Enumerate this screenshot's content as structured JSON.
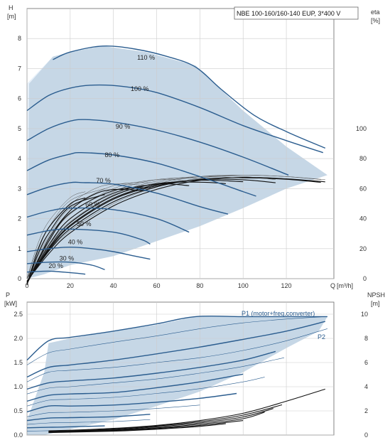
{
  "model_label": "NBE 100-160/160-140 EUP, 3*400 V",
  "chart_data": [
    {
      "type": "line",
      "ylabel_left": "H",
      "yunit_left": "[m]",
      "ylabel_right": "eta",
      "yunit_right": "[%]",
      "xlabel": "Q",
      "xunit": "[m³/h]",
      "xlim": [
        0,
        142
      ],
      "ylim_left": [
        0,
        9
      ],
      "ylim_right": [
        0,
        180
      ],
      "xticks": [
        0,
        20,
        40,
        60,
        80,
        100,
        120
      ],
      "yticks_left": [
        0,
        1,
        2,
        3,
        4,
        5,
        6,
        7,
        8
      ],
      "yticks_right": [
        0,
        20,
        40,
        60,
        80,
        100
      ],
      "grid": true,
      "operating_area": [
        [
          0,
          0
        ],
        [
          1,
          6.5
        ],
        [
          12,
          7.4
        ],
        [
          20,
          7.55
        ],
        [
          35,
          7.75
        ],
        [
          55,
          7.55
        ],
        [
          78,
          7.1
        ],
        [
          100,
          5.6
        ],
        [
          120,
          4.4
        ],
        [
          139,
          3.45
        ],
        [
          120,
          3.0
        ],
        [
          100,
          2.35
        ],
        [
          80,
          1.75
        ],
        [
          60,
          1.25
        ],
        [
          40,
          0.75
        ],
        [
          20,
          0.45
        ],
        [
          8,
          0.15
        ],
        [
          0,
          0
        ]
      ],
      "series": [
        {
          "name": "110 %",
          "label_at": [
            51,
            7.3
          ],
          "x": [
            12,
            20,
            35,
            50,
            65,
            78,
            90,
            105,
            120,
            138
          ],
          "values": [
            7.3,
            7.55,
            7.75,
            7.65,
            7.4,
            7.05,
            6.3,
            5.45,
            4.9,
            4.35
          ]
        },
        {
          "name": "100 %",
          "label_at": [
            48,
            6.25
          ],
          "x": [
            0,
            10,
            20,
            31,
            45,
            60,
            80,
            100,
            120,
            137
          ],
          "values": [
            5.6,
            6.1,
            6.35,
            6.45,
            6.4,
            6.2,
            5.7,
            5.1,
            4.6,
            4.2
          ]
        },
        {
          "name": "90 %",
          "label_at": [
            41,
            5.0
          ],
          "x": [
            0,
            10,
            20,
            27,
            40,
            60,
            80,
            100,
            121
          ],
          "values": [
            4.6,
            5.0,
            5.25,
            5.3,
            5.22,
            4.95,
            4.55,
            4.05,
            3.45
          ]
        },
        {
          "name": "80 %",
          "label_at": [
            36,
            4.05
          ],
          "x": [
            0,
            10,
            20,
            25,
            40,
            60,
            80,
            100,
            106
          ],
          "values": [
            3.6,
            3.95,
            4.15,
            4.2,
            4.12,
            3.85,
            3.4,
            2.9,
            2.75
          ]
        },
        {
          "name": "70 %",
          "label_at": [
            32,
            3.2
          ],
          "x": [
            0,
            10,
            20,
            26,
            40,
            60,
            80,
            93
          ],
          "values": [
            2.8,
            3.05,
            3.2,
            3.2,
            3.15,
            2.85,
            2.4,
            2.15
          ]
        },
        {
          "name": "60 %",
          "label_at": [
            27,
            2.4
          ],
          "x": [
            0,
            10,
            20,
            40,
            60,
            75
          ],
          "values": [
            2.05,
            2.25,
            2.35,
            2.3,
            2.0,
            1.55
          ]
        },
        {
          "name": "50 %",
          "label_at": [
            23,
            1.75
          ],
          "x": [
            0,
            10,
            20,
            40,
            53,
            57
          ],
          "values": [
            1.45,
            1.6,
            1.65,
            1.55,
            1.3,
            1.15
          ]
        },
        {
          "name": "40 %",
          "label_at": [
            19,
            1.15
          ],
          "x": [
            0,
            10,
            20,
            30,
            40,
            50,
            57
          ],
          "values": [
            0.9,
            1.0,
            1.05,
            1.0,
            0.9,
            0.75,
            0.65
          ]
        },
        {
          "name": "30 %",
          "label_at": [
            15,
            0.6
          ],
          "x": [
            0,
            10,
            20,
            30,
            36
          ],
          "values": [
            0.5,
            0.55,
            0.55,
            0.45,
            0.3
          ]
        },
        {
          "name": "20 %",
          "label_at": [
            10,
            0.35
          ],
          "x": [
            0,
            10,
            20,
            27
          ],
          "values": [
            0.22,
            0.25,
            0.2,
            0.15
          ]
        }
      ],
      "eta_curves": [
        {
          "x": [
            0,
            10,
            20,
            40,
            60,
            80,
            100,
            120,
            138
          ],
          "values": [
            0,
            18,
            32,
            50,
            61,
            67,
            69,
            68,
            66
          ]
        },
        {
          "x": [
            0,
            10,
            20,
            40,
            60,
            80,
            100,
            120,
            136
          ],
          "values": [
            0,
            20,
            35,
            53,
            63,
            68,
            69,
            68,
            66
          ]
        },
        {
          "x": [
            0,
            10,
            20,
            40,
            60,
            80,
            100,
            115
          ],
          "values": [
            0,
            21,
            37,
            55,
            64,
            68,
            68,
            66
          ]
        },
        {
          "x": [
            0,
            10,
            20,
            40,
            60,
            80,
            100
          ],
          "values": [
            0,
            22,
            38,
            56,
            65,
            68,
            67
          ]
        },
        {
          "x": [
            0,
            10,
            20,
            40,
            60,
            80,
            92
          ],
          "values": [
            0,
            23,
            40,
            58,
            66,
            67,
            66
          ]
        },
        {
          "x": [
            0,
            10,
            20,
            40,
            60,
            75
          ],
          "values": [
            0,
            25,
            43,
            60,
            66,
            65
          ]
        },
        {
          "x": [
            0,
            10,
            20,
            40,
            57
          ],
          "values": [
            0,
            28,
            47,
            62,
            64
          ]
        },
        {
          "x": [
            0,
            10,
            20,
            30,
            40,
            57
          ],
          "values": [
            0,
            30,
            49,
            59,
            63,
            62
          ]
        },
        {
          "x": [
            0,
            5,
            10,
            20,
            36
          ],
          "values": [
            0,
            20,
            34,
            52,
            60
          ]
        },
        {
          "x": [
            0,
            5,
            10,
            20,
            27
          ],
          "values": [
            0,
            23,
            38,
            54,
            58
          ]
        }
      ]
    },
    {
      "type": "line",
      "ylabel_left": "P",
      "yunit_left": "[kW]",
      "ylabel_right": "NPSH",
      "yunit_right": "[m]",
      "xlim": [
        0,
        142
      ],
      "ylim_left": [
        0,
        2.75
      ],
      "ylim_right": [
        0,
        11
      ],
      "yticks_left": [
        0,
        0.5,
        1.0,
        1.5,
        2.0,
        2.5
      ],
      "ytick_labels_left": [
        "0.0",
        "0.5",
        "1.0",
        "1.5",
        "2.0",
        "2.5"
      ],
      "yticks_right": [
        0,
        2,
        4,
        6,
        8,
        10
      ],
      "grid": true,
      "annotations": [
        {
          "text": "P1 (motor+freq.converter)",
          "at": [
            120,
            2.47
          ]
        },
        {
          "text": "P2",
          "at": [
            134,
            2.09
          ]
        }
      ],
      "operating_area": [
        [
          10,
          1.9
        ],
        [
          20,
          2.0
        ],
        [
          40,
          2.15
        ],
        [
          60,
          2.28
        ],
        [
          78,
          2.45
        ],
        [
          100,
          2.45
        ],
        [
          139,
          2.45
        ],
        [
          135,
          2.15
        ],
        [
          120,
          1.8
        ],
        [
          110,
          1.55
        ],
        [
          100,
          1.3
        ],
        [
          80,
          0.9
        ],
        [
          60,
          0.6
        ],
        [
          40,
          0.32
        ],
        [
          20,
          0.12
        ],
        [
          8,
          0.0
        ],
        [
          0,
          0.0
        ],
        [
          0,
          0.3
        ],
        [
          8,
          1.3
        ]
      ],
      "series": [
        {
          "name": "P1 (motor+freq.converter)",
          "x": [
            0,
            10,
            20,
            40,
            60,
            78,
            100,
            120,
            139
          ],
          "values": [
            1.55,
            1.95,
            2.02,
            2.15,
            2.3,
            2.45,
            2.45,
            2.45,
            2.45
          ]
        },
        {
          "name": "P2",
          "x": [
            0,
            10,
            20,
            40,
            60,
            80,
            100,
            120,
            138
          ],
          "values": [
            1.45,
            1.7,
            1.78,
            1.92,
            2.05,
            2.2,
            2.32,
            2.4,
            2.45
          ]
        },
        {
          "x": [
            0,
            10,
            20,
            40,
            60,
            80,
            100,
            120,
            138
          ],
          "values": [
            1.2,
            1.4,
            1.45,
            1.55,
            1.68,
            1.82,
            1.98,
            2.15,
            2.35
          ]
        },
        {
          "x": [
            0,
            10,
            20,
            40,
            60,
            80,
            100,
            120,
            139
          ],
          "values": [
            1.1,
            1.3,
            1.34,
            1.4,
            1.5,
            1.6,
            1.75,
            1.95,
            2.2
          ]
        },
        {
          "x": [
            0,
            10,
            20,
            40,
            60,
            80,
            100,
            115
          ],
          "values": [
            0.95,
            1.08,
            1.12,
            1.18,
            1.28,
            1.4,
            1.55,
            1.73
          ]
        },
        {
          "x": [
            0,
            10,
            20,
            40,
            60,
            80,
            100,
            119
          ],
          "values": [
            0.85,
            0.97,
            1.0,
            1.08,
            1.16,
            1.28,
            1.42,
            1.6
          ]
        },
        {
          "x": [
            0,
            10,
            20,
            40,
            60,
            80,
            100
          ],
          "values": [
            0.7,
            0.82,
            0.85,
            0.88,
            0.98,
            1.1,
            1.26
          ]
        },
        {
          "x": [
            0,
            10,
            20,
            40,
            60,
            80,
            100,
            110
          ],
          "values": [
            0.6,
            0.72,
            0.74,
            0.78,
            0.86,
            0.96,
            1.1,
            1.2
          ]
        },
        {
          "x": [
            0,
            10,
            20,
            40,
            60,
            80,
            97
          ],
          "values": [
            0.48,
            0.6,
            0.6,
            0.62,
            0.68,
            0.76,
            0.86
          ]
        },
        {
          "x": [
            0,
            10,
            20,
            40,
            60,
            80
          ],
          "values": [
            0.38,
            0.46,
            0.47,
            0.5,
            0.55,
            0.62
          ]
        },
        {
          "x": [
            0,
            10,
            20,
            40,
            57
          ],
          "values": [
            0.3,
            0.35,
            0.36,
            0.38,
            0.43
          ]
        },
        {
          "x": [
            0,
            10,
            20,
            40,
            57
          ],
          "values": [
            0.22,
            0.25,
            0.26,
            0.28,
            0.32
          ]
        },
        {
          "x": [
            0,
            10,
            20,
            36
          ],
          "values": [
            0.15,
            0.16,
            0.17,
            0.19
          ]
        },
        {
          "x": [
            0,
            10,
            20,
            27
          ],
          "values": [
            0.08,
            0.09,
            0.1,
            0.11
          ]
        }
      ],
      "npsh_curves": [
        {
          "x": [
            10,
            20,
            40,
            60,
            80,
            100,
            120,
            138
          ],
          "values": [
            0.35,
            0.4,
            0.55,
            0.8,
            1.2,
            1.8,
            2.8,
            3.8
          ]
        },
        {
          "x": [
            10,
            20,
            40,
            60,
            80,
            100,
            118
          ],
          "values": [
            0.3,
            0.35,
            0.5,
            0.75,
            1.1,
            1.65,
            2.5
          ]
        },
        {
          "x": [
            10,
            20,
            40,
            60,
            80,
            100,
            114
          ],
          "values": [
            0.28,
            0.33,
            0.45,
            0.68,
            1.0,
            1.5,
            2.2
          ]
        },
        {
          "x": [
            10,
            20,
            40,
            60,
            80,
            100,
            110
          ],
          "values": [
            0.25,
            0.3,
            0.4,
            0.6,
            0.9,
            1.35,
            1.9
          ]
        },
        {
          "x": [
            10,
            20,
            40,
            60,
            80,
            100
          ],
          "values": [
            0.22,
            0.27,
            0.36,
            0.54,
            0.8,
            1.2
          ]
        },
        {
          "x": [
            10,
            20,
            40,
            60,
            80,
            92
          ],
          "values": [
            0.2,
            0.24,
            0.32,
            0.48,
            0.72,
            0.95
          ]
        }
      ]
    }
  ],
  "colors": {
    "curve": "#2b5d8f",
    "area": "#c6d7e6",
    "area_light": "#e8f1fa",
    "grid": "#cccccc",
    "axis": "#666666",
    "black_curve": "#111111",
    "thin_curve": "#555555"
  }
}
